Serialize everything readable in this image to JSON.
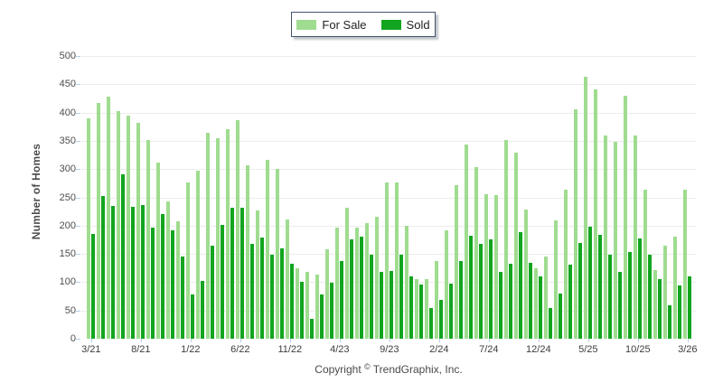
{
  "legend": {
    "items": [
      {
        "label": "For Sale",
        "color": "#9FDC8F"
      },
      {
        "label": "Sold",
        "color": "#12A51F"
      }
    ]
  },
  "y_axis": {
    "title": "Number of Homes",
    "tick_labels": [
      "500",
      "450",
      "400",
      "350",
      "300",
      "250",
      "200",
      "150",
      "100",
      "50",
      "0"
    ]
  },
  "footer": {
    "prefix": "Copyright",
    "symbol": "©",
    "company": "TrendGraphix, Inc."
  },
  "colors": {
    "for_sale": "#9FDC8F",
    "sold": "#12A51F",
    "gridline": "#ececec",
    "tick": "#b9cfe6",
    "legend_border": "#44546A"
  },
  "chart_data": {
    "type": "bar",
    "title": "",
    "xlabel": "",
    "ylabel": "Number of Homes",
    "ylim": [
      0,
      500
    ],
    "ytick_step": 50,
    "grid": "horizontal-only",
    "legend_position": "top-center",
    "categories": [
      "3/21",
      "4/21",
      "5/21",
      "6/21",
      "7/21",
      "8/21",
      "9/21",
      "10/21",
      "11/21",
      "12/21",
      "1/22",
      "2/22",
      "3/22",
      "4/22",
      "5/22",
      "6/22",
      "7/22",
      "8/22",
      "9/22",
      "10/22",
      "11/22",
      "12/22",
      "1/23",
      "2/23",
      "3/23",
      "4/23",
      "5/23",
      "6/23",
      "7/23",
      "8/23",
      "9/23",
      "10/23",
      "11/23",
      "12/23",
      "1/24",
      "2/24",
      "3/24",
      "4/24",
      "5/24",
      "6/24",
      "7/24",
      "8/24",
      "9/24",
      "10/24",
      "11/24",
      "12/24",
      "1/25",
      "2/25",
      "3/25",
      "4/25",
      "5/25",
      "6/25",
      "7/25",
      "8/25",
      "9/25",
      "10/25",
      "11/25",
      "12/25",
      "1/26",
      "2/26",
      "3/26"
    ],
    "x_axis_labeled_ticks": [
      "3/21",
      "8/21",
      "1/22",
      "6/22",
      "11/22",
      "4/23",
      "9/23",
      "2/24",
      "7/24",
      "12/24",
      "5/25",
      "10/25",
      "3/26"
    ],
    "x_label_every": 5,
    "series": [
      {
        "name": "For Sale",
        "color": "#9FDC8F",
        "values": [
          390,
          417,
          428,
          403,
          394,
          382,
          352,
          312,
          243,
          208,
          277,
          297,
          365,
          355,
          370,
          386,
          307,
          227,
          317,
          301,
          211,
          124,
          119,
          114,
          158,
          196,
          232,
          196,
          205,
          216,
          277,
          276,
          199,
          105,
          106,
          138,
          192,
          271,
          343,
          303,
          256,
          254,
          352,
          329,
          228,
          125,
          146,
          210,
          264,
          405,
          463,
          441,
          359,
          348,
          430,
          360,
          263,
          122,
          164,
          180,
          264
        ]
      },
      {
        "name": "Sold",
        "color": "#12A51F",
        "values": [
          185,
          253,
          235,
          290,
          234,
          236,
          196,
          220,
          191,
          145,
          78,
          103,
          164,
          202,
          232,
          231,
          167,
          179,
          149,
          160,
          132,
          101,
          35,
          78,
          99,
          138,
          175,
          181,
          148,
          119,
          120,
          149,
          110,
          96,
          55,
          68,
          98,
          138,
          182,
          167,
          175,
          119,
          132,
          189,
          134,
          111,
          54,
          80,
          131,
          170,
          198,
          183,
          149,
          119,
          153,
          178,
          149,
          105,
          59,
          94,
          111
        ]
      }
    ]
  }
}
